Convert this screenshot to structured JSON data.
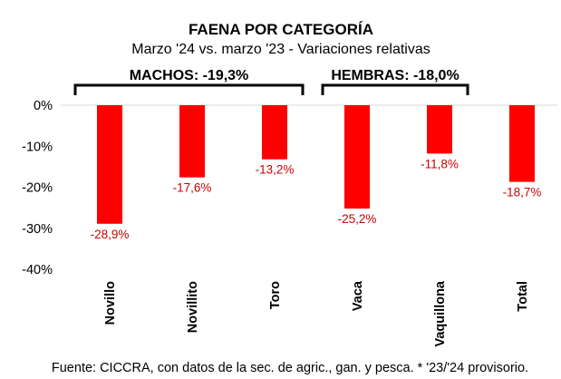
{
  "chart_data": {
    "type": "bar",
    "title": "FAENA POR CATEGORÍA",
    "subtitle": "Marzo '24 vs. marzo '23 - Variaciones relativas",
    "categories": [
      "Novillo",
      "Novillito",
      "Toro",
      "Vaca",
      "Vaquillona",
      "Total"
    ],
    "values": [
      -28.9,
      -17.6,
      -13.2,
      -25.2,
      -11.8,
      -18.7
    ],
    "value_labels": [
      "-28,9%",
      "-17,6%",
      "-13,2%",
      "-25,2%",
      "-11,8%",
      "-18,7%"
    ],
    "ylim": [
      -40,
      0
    ],
    "yticks": [
      0,
      -10,
      -20,
      -30,
      -40
    ],
    "ytick_labels": [
      "0%",
      "-10%",
      "-20%",
      "-30%",
      "-40%"
    ],
    "xlabel": "",
    "ylabel": "",
    "groups": [
      {
        "label": "MACHOS: -19,3%",
        "from": 0,
        "to": 2
      },
      {
        "label": "HEMBRAS: -18,0%",
        "from": 3,
        "to": 4
      }
    ],
    "bar_color": "#ff0000",
    "label_color": "#cc0000",
    "source": "Fuente: CICCRA, con datos de la sec. de agric., gan. y pesca. * '23/'24 provisorio."
  }
}
